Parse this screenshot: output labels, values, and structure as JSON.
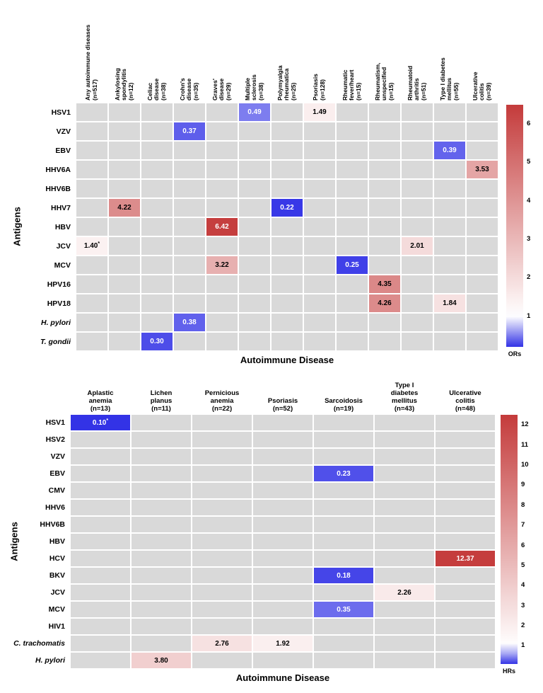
{
  "colors": {
    "low": "#3333e6",
    "mid": "#ffffff",
    "high": "#c43b3b",
    "empty": "#d9d9d9"
  },
  "chart_data": [
    {
      "type": "heatmap",
      "title": "",
      "xlabel": "Autoimmune Disease",
      "ylabel": "Antigens",
      "legend_label": "ORs",
      "colorbar_ticks": [
        1,
        2,
        3,
        4,
        5,
        6
      ],
      "value_range": [
        0.2,
        6.5
      ],
      "columns": [
        "Any autoimmune diseases\n(n=517)",
        "Ankylosing\nspondylitis\n(n=12)",
        "Celiac\ndisease\n(n=38)",
        "Crohn's\ndisease\n(n=35)",
        "Graves'\ndisease\n(n=29)",
        "Multiple\nsclerosis\n(n=38)",
        "Polymyalgia\nrheumatica\n(n=25)",
        "Psoriasis\n(n=128)",
        "Rheumatic\nfever/heart\n(n=15)",
        "Rheumatism,\nunspecified\n(n=15)",
        "Rheumatoid\narthritis\n(n=51)",
        "Type I diabetes\nmellitus\n(n=55)",
        "Ulcerative\ncolitis\n(n=39)"
      ],
      "rows": [
        "HSV1",
        "VZV",
        "EBV",
        "HHV6A",
        "HHV6B",
        "HHV7",
        "HBV",
        "JCV",
        "MCV",
        "HPV16",
        "HPV18",
        "H. pylori",
        "T. gondii"
      ],
      "italic_rows": [
        "H. pylori",
        "T. gondii"
      ],
      "cells": [
        {
          "row": "HSV1",
          "col": "Multiple sclerosis",
          "col_index": 5,
          "value": 0.49,
          "label": "0.49"
        },
        {
          "row": "HSV1",
          "col": "Psoriasis",
          "col_index": 7,
          "value": 1.49,
          "label": "1.49"
        },
        {
          "row": "VZV",
          "col": "Crohn's disease",
          "col_index": 3,
          "value": 0.37,
          "label": "0.37"
        },
        {
          "row": "EBV",
          "col": "Type I diabetes mellitus",
          "col_index": 11,
          "value": 0.39,
          "label": "0.39"
        },
        {
          "row": "HHV6A",
          "col": "Ulcerative colitis",
          "col_index": 12,
          "value": 3.53,
          "label": "3.53"
        },
        {
          "row": "HHV7",
          "col": "Ankylosing spondylitis",
          "col_index": 1,
          "value": 4.22,
          "label": "4.22"
        },
        {
          "row": "HHV7",
          "col": "Polymyalgia rheumatica",
          "col_index": 6,
          "value": 0.22,
          "label": "0.22"
        },
        {
          "row": "HBV",
          "col": "Graves' disease",
          "col_index": 4,
          "value": 6.42,
          "label": "6.42"
        },
        {
          "row": "JCV",
          "col": "Any autoimmune diseases",
          "col_index": 0,
          "value": 1.4,
          "label": "1.40*"
        },
        {
          "row": "JCV",
          "col": "Rheumatoid arthritis",
          "col_index": 10,
          "value": 2.01,
          "label": "2.01"
        },
        {
          "row": "MCV",
          "col": "Graves' disease",
          "col_index": 4,
          "value": 3.22,
          "label": "3.22"
        },
        {
          "row": "MCV",
          "col": "Rheumatic fever/heart",
          "col_index": 8,
          "value": 0.25,
          "label": "0.25"
        },
        {
          "row": "HPV16",
          "col": "Rheumatism, unspecified",
          "col_index": 9,
          "value": 4.35,
          "label": "4.35"
        },
        {
          "row": "HPV18",
          "col": "Rheumatism, unspecified",
          "col_index": 9,
          "value": 4.26,
          "label": "4.26"
        },
        {
          "row": "HPV18",
          "col": "Type I diabetes mellitus",
          "col_index": 11,
          "value": 1.84,
          "label": "1.84"
        },
        {
          "row": "H. pylori",
          "col": "Crohn's disease",
          "col_index": 3,
          "value": 0.38,
          "label": "0.38"
        },
        {
          "row": "T. gondii",
          "col": "Celiac disease",
          "col_index": 2,
          "value": 0.3,
          "label": "0.30"
        }
      ]
    },
    {
      "type": "heatmap",
      "title": "",
      "xlabel": "Autoimmune Disease",
      "ylabel": "Antigens",
      "legend_label": "HRs",
      "colorbar_ticks": [
        1,
        2,
        3,
        4,
        5,
        6,
        7,
        8,
        9,
        10,
        11,
        12
      ],
      "value_range": [
        0.1,
        12.5
      ],
      "columns": [
        "Aplastic\nanemia\n(n=13)",
        "Lichen\nplanus\n(n=11)",
        "Pernicious\nanemia\n(n=22)",
        "Psoriasis\n(n=52)",
        "Sarcoidosis\n(n=19)",
        "Type I\ndiabetes\nmellitus\n(n=43)",
        "Ulcerative\ncolitis\n(n=48)"
      ],
      "rows": [
        "HSV1",
        "HSV2",
        "VZV",
        "EBV",
        "CMV",
        "HHV6",
        "HHV6B",
        "HBV",
        "HCV",
        "BKV",
        "JCV",
        "MCV",
        "HIV1",
        "C. trachomatis",
        "H. pylori"
      ],
      "italic_rows": [
        "C. trachomatis",
        "H. pylori"
      ],
      "cells": [
        {
          "row": "HSV1",
          "col": "Aplastic anemia",
          "col_index": 0,
          "value": 0.1,
          "label": "0.10*"
        },
        {
          "row": "EBV",
          "col": "Sarcoidosis",
          "col_index": 4,
          "value": 0.23,
          "label": "0.23"
        },
        {
          "row": "HCV",
          "col": "Ulcerative colitis",
          "col_index": 6,
          "value": 12.37,
          "label": "12.37"
        },
        {
          "row": "BKV",
          "col": "Sarcoidosis",
          "col_index": 4,
          "value": 0.18,
          "label": "0.18"
        },
        {
          "row": "JCV",
          "col": "Type I diabetes mellitus",
          "col_index": 5,
          "value": 2.26,
          "label": "2.26"
        },
        {
          "row": "MCV",
          "col": "Sarcoidosis",
          "col_index": 4,
          "value": 0.35,
          "label": "0.35"
        },
        {
          "row": "C. trachomatis",
          "col": "Pernicious anemia",
          "col_index": 2,
          "value": 2.76,
          "label": "2.76"
        },
        {
          "row": "C. trachomatis",
          "col": "Psoriasis",
          "col_index": 3,
          "value": 1.92,
          "label": "1.92"
        },
        {
          "row": "H. pylori",
          "col": "Lichen planus",
          "col_index": 1,
          "value": 3.8,
          "label": "3.80"
        }
      ]
    }
  ]
}
